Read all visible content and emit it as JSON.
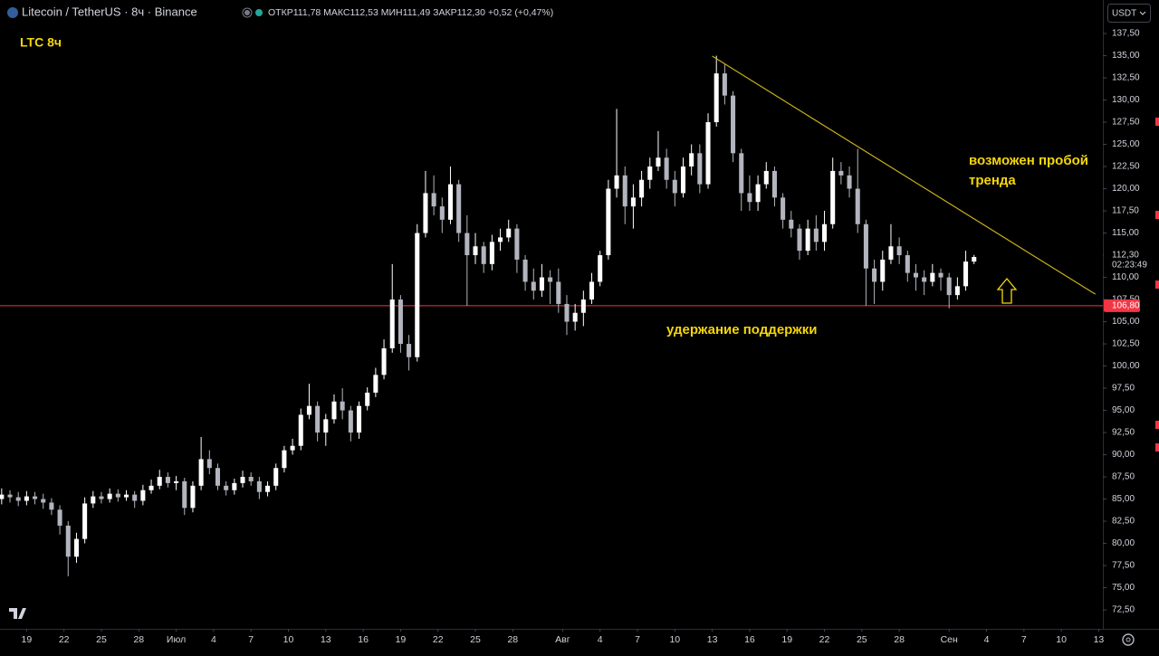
{
  "chart_data": {
    "type": "candlestick",
    "title": "Litecoin / TetherUS · 8ч · Binance",
    "subtitle": "ОТКР111,78 МАКС112,53 МИН111,49 ЗАКР112,30 +0,52 (+0,47%)",
    "currency": "USDT",
    "annotations": [
      "LTC 8ч",
      "возможен пробой",
      "тренда",
      "удержание поддержки"
    ],
    "annotation_color": "#f5d60a",
    "up_color": "#ffffff",
    "down_color": "#b2b5be",
    "grid": false,
    "xlim": [
      -0.2,
      132.5
    ],
    "ylim": [
      70.36,
      141.28
    ],
    "xticks": [
      {
        "value": 3,
        "label": "19"
      },
      {
        "value": 7.5,
        "label": "22"
      },
      {
        "value": 12,
        "label": "25"
      },
      {
        "value": 16.5,
        "label": "28"
      },
      {
        "value": 21,
        "label": "Июл"
      },
      {
        "value": 25.5,
        "label": "4"
      },
      {
        "value": 30,
        "label": "7"
      },
      {
        "value": 34.5,
        "label": "10"
      },
      {
        "value": 39,
        "label": "13"
      },
      {
        "value": 43.5,
        "label": "16"
      },
      {
        "value": 48,
        "label": "19"
      },
      {
        "value": 52.5,
        "label": "22"
      },
      {
        "value": 57,
        "label": "25"
      },
      {
        "value": 61.5,
        "label": "28"
      },
      {
        "value": 67.5,
        "label": "Авг"
      },
      {
        "value": 72,
        "label": "4"
      },
      {
        "value": 76.5,
        "label": "7"
      },
      {
        "value": 81,
        "label": "10"
      },
      {
        "value": 85.5,
        "label": "13"
      },
      {
        "value": 90,
        "label": "16"
      },
      {
        "value": 94.5,
        "label": "19"
      },
      {
        "value": 99,
        "label": "22"
      },
      {
        "value": 103.5,
        "label": "25"
      },
      {
        "value": 108,
        "label": "28"
      },
      {
        "value": 114,
        "label": "Сен"
      },
      {
        "value": 118.5,
        "label": "4"
      },
      {
        "value": 123,
        "label": "7"
      },
      {
        "value": 127.5,
        "label": "10"
      },
      {
        "value": 132,
        "label": "13"
      }
    ],
    "yticks": [
      {
        "value": 72.5,
        "label": "72,50"
      },
      {
        "value": 75,
        "label": "75,00"
      },
      {
        "value": 77.5,
        "label": "77,50"
      },
      {
        "value": 80,
        "label": "80,00"
      },
      {
        "value": 82.5,
        "label": "82,50"
      },
      {
        "value": 85,
        "label": "85,00"
      },
      {
        "value": 87.5,
        "label": "87,50"
      },
      {
        "value": 90,
        "label": "90,00"
      },
      {
        "value": 92.5,
        "label": "92,50"
      },
      {
        "value": 95,
        "label": "95,00"
      },
      {
        "value": 97.5,
        "label": "97,50"
      },
      {
        "value": 100,
        "label": "100,00"
      },
      {
        "value": 102.5,
        "label": "102,50"
      },
      {
        "value": 105,
        "label": "105,00"
      },
      {
        "value": 107.5,
        "label": "107,50"
      },
      {
        "value": 110,
        "label": "110,00"
      },
      {
        "value": 112.5,
        "label": "112,50"
      },
      {
        "value": 115,
        "label": "115,00"
      },
      {
        "value": 117.5,
        "label": "117,50"
      },
      {
        "value": 120,
        "label": "120,00"
      },
      {
        "value": 122.5,
        "label": "122,50"
      },
      {
        "value": 125,
        "label": "125,00"
      },
      {
        "value": 127.5,
        "label": "127,50"
      },
      {
        "value": 130,
        "label": "130,00"
      },
      {
        "value": 132.5,
        "label": "132,50"
      },
      {
        "value": 135,
        "label": "135,00"
      },
      {
        "value": 137.5,
        "label": "137,50"
      }
    ],
    "open": [
      85.0,
      85.5,
      85.2,
      84.8,
      85.3,
      85.0,
      84.6,
      83.8,
      82.0,
      78.5,
      80.5,
      84.5,
      85.3,
      85.0,
      85.6,
      85.2,
      85.5,
      84.8,
      86.0,
      86.5,
      87.5,
      86.8,
      87.0,
      84.0,
      86.5,
      89.5,
      88.5,
      86.5,
      86.0,
      86.8,
      87.5,
      87.0,
      85.8,
      86.5,
      88.5,
      90.5,
      91.0,
      94.5,
      95.5,
      92.5,
      94.0,
      96.0,
      95.0,
      92.5,
      95.5,
      97.0,
      99.0,
      102.0,
      107.5,
      102.5,
      101.0,
      115.0,
      119.5,
      118.0,
      116.5,
      120.5,
      115.0,
      112.5,
      113.5,
      111.5,
      114.0,
      114.5,
      115.5,
      112.0,
      109.5,
      108.5,
      110.0,
      109.5,
      107.0,
      105.0,
      106.0,
      107.5,
      109.5,
      112.5,
      120.0,
      121.5,
      118.0,
      119.0,
      121.0,
      122.5,
      123.5,
      121.0,
      119.5,
      122.5,
      124.0,
      120.5,
      127.5,
      133.0,
      130.5,
      124.0,
      119.5,
      118.5,
      120.5,
      122.0,
      119.0,
      116.5,
      115.5,
      113.0,
      115.5,
      114.0,
      116.0,
      122.0,
      121.5,
      120.0,
      116.0,
      111.0,
      109.5,
      112.0,
      113.5,
      112.5,
      110.5,
      110.0,
      109.5,
      110.5,
      110.0,
      108.0,
      109.0,
      111.78
    ],
    "high": [
      86.2,
      86.0,
      85.8,
      85.9,
      85.8,
      85.6,
      85.1,
      84.3,
      82.5,
      81.2,
      85.2,
      85.9,
      85.8,
      86.2,
      86.1,
      86.0,
      85.9,
      86.6,
      87.2,
      88.3,
      88.0,
      87.6,
      87.4,
      87.0,
      92.0,
      90.5,
      89.0,
      87.0,
      87.3,
      88.2,
      88.0,
      87.5,
      87.0,
      89.0,
      91.0,
      91.8,
      95.2,
      98.0,
      96.0,
      94.6,
      96.8,
      97.5,
      95.5,
      96.0,
      97.6,
      99.8,
      103.0,
      111.5,
      108.0,
      103.5,
      116.0,
      122.0,
      121.5,
      119.0,
      122.5,
      121.0,
      117.0,
      115.0,
      114.0,
      114.8,
      115.5,
      116.5,
      116.0,
      112.5,
      111.0,
      111.5,
      110.8,
      111.0,
      108.0,
      107.0,
      108.5,
      110.5,
      113.0,
      121.0,
      129.0,
      122.5,
      120.5,
      122.0,
      123.5,
      126.5,
      124.5,
      122.0,
      123.5,
      125.0,
      125.0,
      128.5,
      135.0,
      134.0,
      131.0,
      124.5,
      121.5,
      121.5,
      123.0,
      122.5,
      119.5,
      117.5,
      116.0,
      116.5,
      117.0,
      117.5,
      123.5,
      123.0,
      122.5,
      124.5,
      116.5,
      112.0,
      113.0,
      116.0,
      114.5,
      113.0,
      111.5,
      110.8,
      111.5,
      111.0,
      110.5,
      110.0,
      113.0,
      112.53
    ],
    "low": [
      84.4,
      84.6,
      84.2,
      84.3,
      84.4,
      83.9,
      83.2,
      81.0,
      76.3,
      77.8,
      80.0,
      84.0,
      84.5,
      84.6,
      84.7,
      84.8,
      84.0,
      84.3,
      85.6,
      86.1,
      86.3,
      86.0,
      83.2,
      83.5,
      86.0,
      87.8,
      86.0,
      85.4,
      85.5,
      86.3,
      86.5,
      85.0,
      85.3,
      86.0,
      88.0,
      90.0,
      90.5,
      94.0,
      91.5,
      91.0,
      93.5,
      94.0,
      91.5,
      91.8,
      95.0,
      96.5,
      98.5,
      101.5,
      101.5,
      99.5,
      100.5,
      114.5,
      117.0,
      115.0,
      116.0,
      114.0,
      106.8,
      111.5,
      110.5,
      110.8,
      113.0,
      114.0,
      110.5,
      108.5,
      107.5,
      107.8,
      107.0,
      106.0,
      103.5,
      104.0,
      104.5,
      107.0,
      109.0,
      112.0,
      119.0,
      116.0,
      115.5,
      118.0,
      120.0,
      122.0,
      120.0,
      118.0,
      119.0,
      121.5,
      119.5,
      120.0,
      127.0,
      129.5,
      123.0,
      117.5,
      117.5,
      117.5,
      120.0,
      118.0,
      115.5,
      114.5,
      112.0,
      112.5,
      113.0,
      113.0,
      115.5,
      120.5,
      119.0,
      115.0,
      106.8,
      107.0,
      108.5,
      111.5,
      111.5,
      109.5,
      108.5,
      108.0,
      109.0,
      108.5,
      106.5,
      107.5,
      108.5,
      111.49
    ],
    "close": [
      85.5,
      85.2,
      84.8,
      85.3,
      85.0,
      84.6,
      83.8,
      82.0,
      78.5,
      80.5,
      84.5,
      85.3,
      85.0,
      85.6,
      85.2,
      85.5,
      84.8,
      86.0,
      86.5,
      87.5,
      86.8,
      87.0,
      84.0,
      86.5,
      89.5,
      88.5,
      86.5,
      86.0,
      86.8,
      87.5,
      87.0,
      85.8,
      86.5,
      88.5,
      90.5,
      91.0,
      94.5,
      95.5,
      92.5,
      94.0,
      96.0,
      95.0,
      92.5,
      95.5,
      97.0,
      99.0,
      102.0,
      107.5,
      102.5,
      101.0,
      115.0,
      119.5,
      118.0,
      116.5,
      120.5,
      115.0,
      112.5,
      113.5,
      111.5,
      114.0,
      114.5,
      115.5,
      112.0,
      109.5,
      108.5,
      110.0,
      109.5,
      107.0,
      105.0,
      106.0,
      107.5,
      109.5,
      112.5,
      120.0,
      121.5,
      118.0,
      119.0,
      121.0,
      122.5,
      123.5,
      121.0,
      119.5,
      122.5,
      124.0,
      120.5,
      127.5,
      133.0,
      130.5,
      124.0,
      119.5,
      118.5,
      120.5,
      122.0,
      119.0,
      116.5,
      115.5,
      113.0,
      115.5,
      114.0,
      116.0,
      122.0,
      121.5,
      120.0,
      116.0,
      111.0,
      109.5,
      112.0,
      113.5,
      112.5,
      110.5,
      110.0,
      109.5,
      110.5,
      110.0,
      108.0,
      109.0,
      111.78,
      112.3
    ],
    "trendline": {
      "x": [
        85.5,
        131.6
      ],
      "y": [
        134.95,
        108.1
      ],
      "color": "#c9b21a"
    },
    "hline": {
      "value": 106.8,
      "label": "106,80",
      "color": "#f23645"
    },
    "last_price": {
      "value": 112.3,
      "label": "112,30",
      "countdown": "02:23:49"
    }
  }
}
